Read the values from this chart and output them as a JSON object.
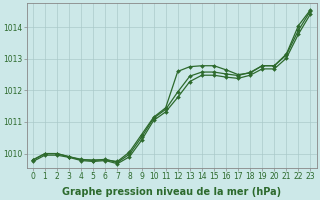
{
  "x": [
    0,
    1,
    2,
    3,
    4,
    5,
    6,
    7,
    8,
    9,
    10,
    11,
    12,
    13,
    14,
    15,
    16,
    17,
    18,
    19,
    20,
    21,
    22,
    23
  ],
  "y_upper": [
    1009.8,
    1010.0,
    1010.0,
    1009.9,
    1009.8,
    1009.8,
    1009.8,
    1009.75,
    1010.05,
    1010.6,
    1011.15,
    1011.45,
    1012.6,
    1012.75,
    1012.78,
    1012.78,
    1012.65,
    1012.5,
    1012.55,
    1012.78,
    1012.78,
    1013.15,
    1014.05,
    1014.55
  ],
  "y_mid": [
    1009.8,
    1010.0,
    1010.0,
    1009.9,
    1009.82,
    1009.78,
    1009.82,
    1009.72,
    1009.98,
    1010.52,
    1011.12,
    1011.4,
    1011.95,
    1012.45,
    1012.58,
    1012.58,
    1012.52,
    1012.47,
    1012.57,
    1012.78,
    1012.78,
    1013.12,
    1013.9,
    1014.52
  ],
  "y_lower": [
    1009.75,
    1009.95,
    1009.95,
    1009.88,
    1009.78,
    1009.75,
    1009.78,
    1009.68,
    1009.9,
    1010.42,
    1011.05,
    1011.32,
    1011.78,
    1012.28,
    1012.48,
    1012.48,
    1012.42,
    1012.38,
    1012.48,
    1012.68,
    1012.68,
    1013.02,
    1013.78,
    1014.42
  ],
  "ylim_min": 1009.55,
  "ylim_max": 1014.75,
  "yticks": [
    1010,
    1011,
    1012,
    1013,
    1014
  ],
  "xticks": [
    0,
    1,
    2,
    3,
    4,
    5,
    6,
    7,
    8,
    9,
    10,
    11,
    12,
    13,
    14,
    15,
    16,
    17,
    18,
    19,
    20,
    21,
    22,
    23
  ],
  "xlabel": "Graphe pression niveau de la mer (hPa)",
  "line_color": "#2d6a2d",
  "bg_color": "#cce8e8",
  "grid_color": "#b0c8c8",
  "tick_fontsize": 5.5,
  "xlabel_fontsize": 7
}
